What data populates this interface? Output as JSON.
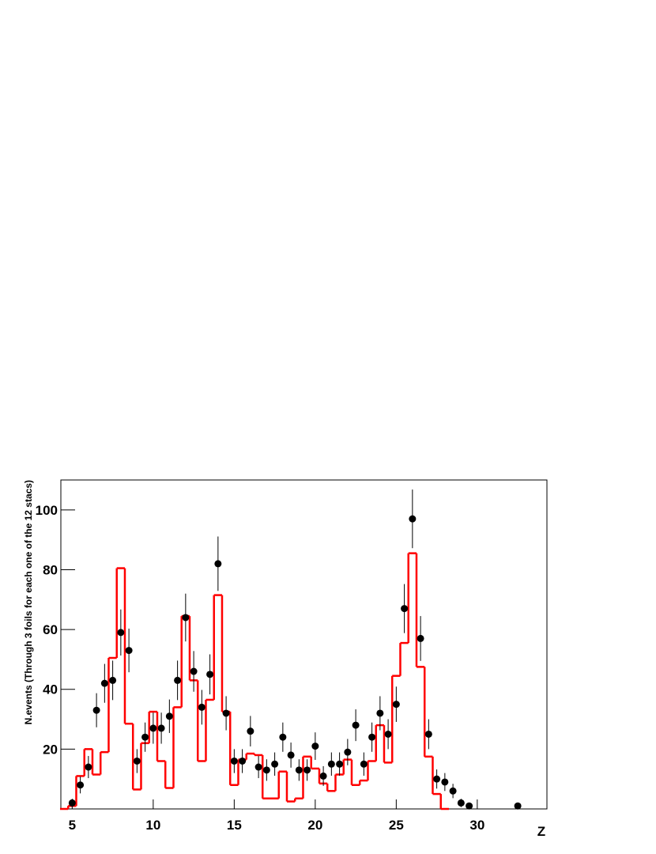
{
  "chart_data": {
    "type": "histogram",
    "x_label": "Z",
    "y_label": "N.events (Through 3 foils for each one of the 12 stacs)",
    "xlim": [
      4.3,
      34.3
    ],
    "ylim": [
      0,
      110
    ],
    "xticks": [
      5,
      10,
      15,
      20,
      25,
      30
    ],
    "yticks": [
      20,
      40,
      60,
      80,
      100
    ],
    "histogram": {
      "color": "#ff0000",
      "bins": [
        4.25,
        4.75,
        5.25,
        5.75,
        6.25,
        6.75,
        7.25,
        7.75,
        8.25,
        8.75,
        9.25,
        9.75,
        10.25,
        10.75,
        11.25,
        11.75,
        12.25,
        12.75,
        13.25,
        13.75,
        14.25,
        14.75,
        15.25,
        15.75,
        16.25,
        16.75,
        17.25,
        17.75,
        18.25,
        18.75,
        19.25,
        19.75,
        20.25,
        20.75,
        21.25,
        21.75,
        22.25,
        22.75,
        23.25,
        23.75,
        24.25,
        24.75,
        25.25,
        25.75,
        26.25,
        26.75,
        27.25,
        27.75,
        28.25
      ],
      "counts": [
        0,
        1,
        11,
        20,
        11.5,
        19,
        50.5,
        80.5,
        28.5,
        6.5,
        22,
        32.5,
        16,
        7,
        34,
        64.5,
        43,
        16,
        36.5,
        71.5,
        32.5,
        8,
        16.5,
        18.5,
        18,
        3.5,
        3.5,
        12.5,
        2.5,
        3.5,
        17.5,
        13.5,
        8.5,
        6,
        11.5,
        16.5,
        8,
        9.5,
        16,
        28,
        15.5,
        44.5,
        55.5,
        85.5,
        47.5,
        17.5,
        5,
        0
      ]
    },
    "points": {
      "color": "#000000",
      "x": [
        5,
        5.5,
        6,
        6.5,
        7,
        7.5,
        8,
        8.5,
        9,
        9.5,
        10,
        10.5,
        11,
        11.5,
        12,
        12.5,
        13,
        13.5,
        14,
        14.5,
        15,
        15.5,
        16,
        16.5,
        17,
        17.5,
        18,
        18.5,
        19,
        19.5,
        20,
        20.5,
        21,
        21.5,
        22,
        22.5,
        23,
        23.5,
        24,
        24.5,
        25,
        25.5,
        26,
        26.5,
        27,
        27.5,
        28,
        28.5,
        29,
        29.5,
        32.5
      ],
      "values": [
        2,
        8,
        14,
        33,
        42,
        43,
        59,
        53,
        16,
        24,
        27,
        27,
        31,
        43,
        64,
        46,
        34,
        45,
        82,
        32,
        16,
        16,
        26,
        14,
        13,
        15,
        24,
        18,
        13,
        13,
        21,
        11,
        15,
        15,
        19,
        28,
        15,
        24,
        32,
        25,
        35,
        67,
        97,
        57,
        25,
        10,
        9,
        6,
        2,
        1,
        1
      ],
      "errors": [
        1.4,
        2.8,
        3.7,
        5.7,
        6.5,
        6.6,
        7.7,
        7.3,
        4,
        4.9,
        5.2,
        5.2,
        5.6,
        6.6,
        8,
        6.8,
        5.8,
        6.7,
        9.1,
        5.7,
        4,
        4,
        5.1,
        3.7,
        3.6,
        3.9,
        4.9,
        4.2,
        3.6,
        3.6,
        4.6,
        3.3,
        3.9,
        3.9,
        4.4,
        5.3,
        3.9,
        4.9,
        5.7,
        5,
        5.9,
        8.2,
        9.8,
        7.5,
        5,
        3.2,
        3,
        2.4,
        1.4,
        1,
        1
      ]
    }
  }
}
